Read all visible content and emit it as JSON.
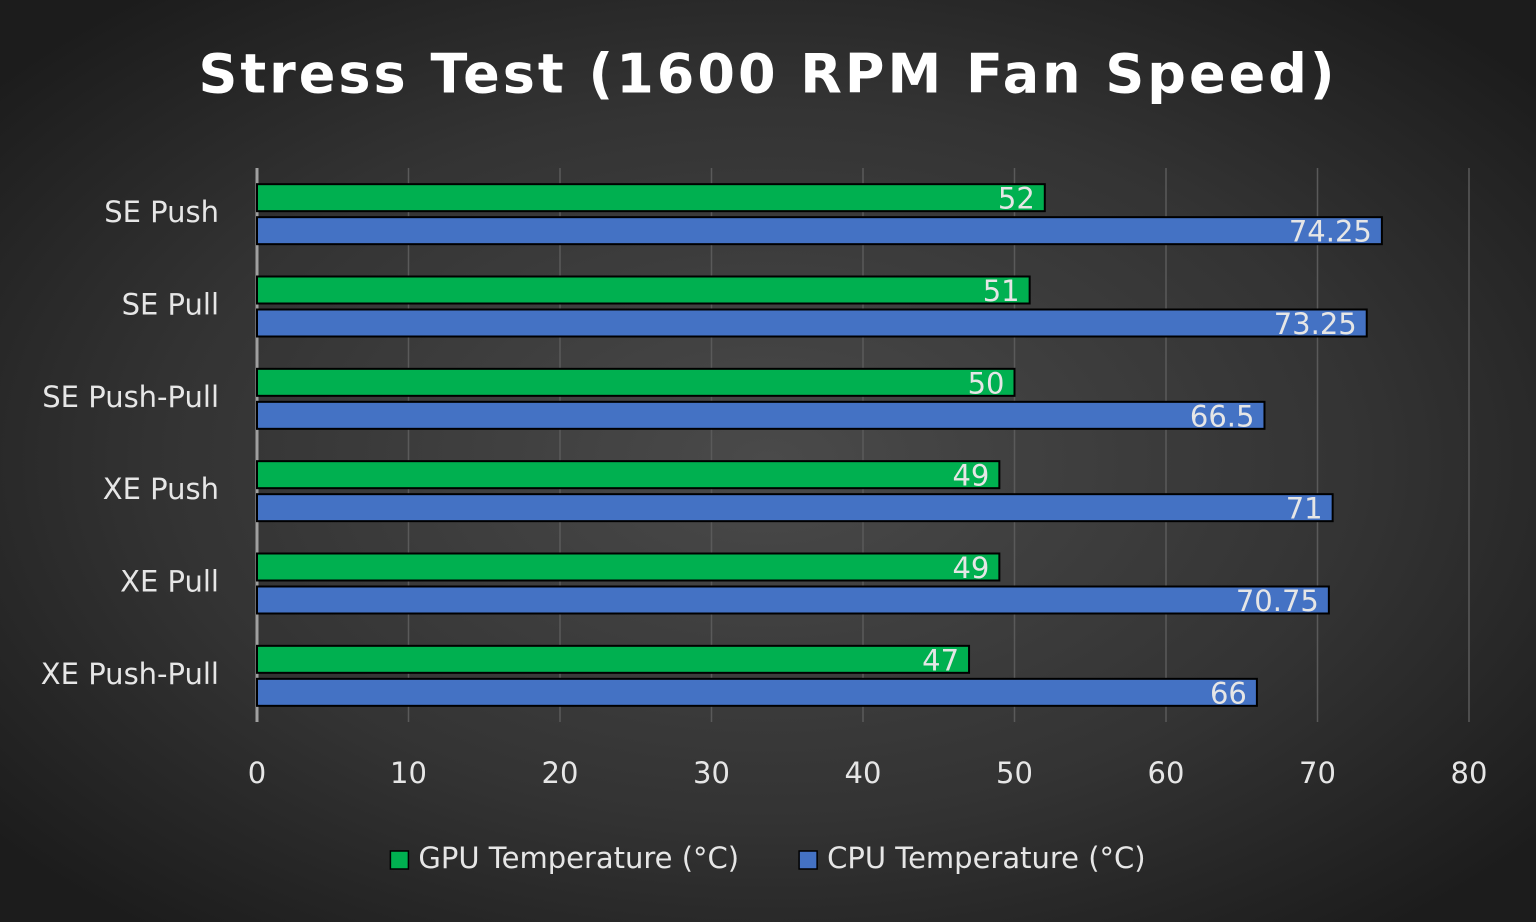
{
  "chart_data": {
    "type": "bar",
    "orientation": "horizontal",
    "title": "Stress Test (1600 RPM Fan Speed)",
    "categories": [
      "SE Push",
      "SE Pull",
      "SE Push-Pull",
      "XE Push",
      "XE Pull",
      "XE Push-Pull"
    ],
    "series": [
      {
        "name": "GPU Temperature (°C)",
        "color": "#00b050",
        "values": [
          52,
          51,
          50,
          49,
          49,
          47
        ]
      },
      {
        "name": "CPU Temperature (°C)",
        "color": "#4472c4",
        "values": [
          74.25,
          73.25,
          66.5,
          71,
          70.75,
          66
        ]
      }
    ],
    "xlim": [
      0,
      80
    ],
    "xticks": [
      0,
      10,
      20,
      30,
      40,
      50,
      60,
      70,
      80
    ],
    "grid": true,
    "legend": "bottom"
  }
}
